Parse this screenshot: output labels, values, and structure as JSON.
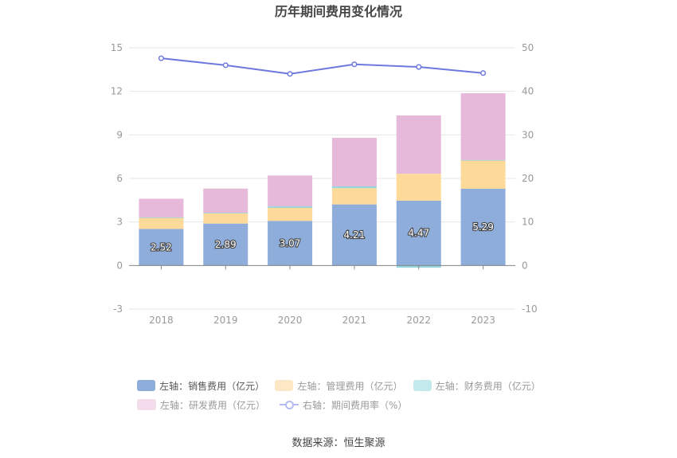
{
  "chart_data": {
    "type": "bar",
    "title": "历年期间费用变化情况",
    "categories": [
      "2018",
      "2019",
      "2020",
      "2021",
      "2022",
      "2023"
    ],
    "stacked": true,
    "left_axis": {
      "ylim": [
        -3,
        15
      ],
      "ticks": [
        -3,
        0,
        3,
        6,
        9,
        12,
        15
      ]
    },
    "right_axis": {
      "ylim": [
        -10,
        50
      ],
      "ticks": [
        -10,
        0,
        10,
        20,
        30,
        40,
        50
      ]
    },
    "series": [
      {
        "name": "左轴：销售费用（亿元）",
        "axis": "left",
        "type": "bar",
        "color": "#8EADDB",
        "values": [
          2.52,
          2.89,
          3.07,
          4.21,
          4.47,
          5.29
        ],
        "show_labels": true
      },
      {
        "name": "左轴：管理费用（亿元）",
        "axis": "left",
        "type": "bar",
        "color": "#FDD99A",
        "values": [
          0.78,
          0.72,
          0.9,
          1.12,
          1.85,
          1.95
        ]
      },
      {
        "name": "左轴：财务费用（亿元）",
        "axis": "left",
        "type": "bar",
        "color": "#92D6DB",
        "values": [
          0.02,
          0.03,
          0.1,
          0.12,
          -0.15,
          0.03
        ]
      },
      {
        "name": "左轴：研发费用（亿元）",
        "axis": "left",
        "type": "bar",
        "color": "#E6B9DA",
        "values": [
          1.28,
          1.66,
          2.13,
          3.35,
          4.02,
          4.6
        ]
      },
      {
        "name": "右轴：期间费用率（%）",
        "axis": "right",
        "type": "line",
        "color": "#6E79DE",
        "values": [
          47.6,
          46.0,
          44.0,
          46.2,
          45.6,
          44.2
        ]
      }
    ],
    "legend_position": "bottom",
    "grid": true
  },
  "source": "数据来源：恒生聚源"
}
